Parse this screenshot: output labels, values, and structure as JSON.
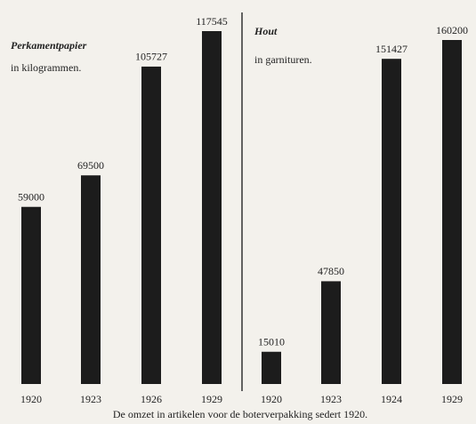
{
  "chart_data": [
    {
      "type": "bar",
      "title": "Perkamentpapier",
      "subtitle": "in kilogrammen.",
      "categories": [
        "1920",
        "1923",
        "1926",
        "1929"
      ],
      "values": [
        59000,
        69500,
        105727,
        117545
      ],
      "color": "#1c1c1c"
    },
    {
      "type": "bar",
      "title": "Hout",
      "subtitle": "in garnituren.",
      "categories": [
        "1920",
        "1923",
        "1924",
        "1929"
      ],
      "values": [
        15010,
        47850,
        151427,
        160200
      ],
      "color": "#1c1c1c"
    }
  ],
  "caption": "De omzet in artikelen voor de boterverpakking sedert 1920."
}
